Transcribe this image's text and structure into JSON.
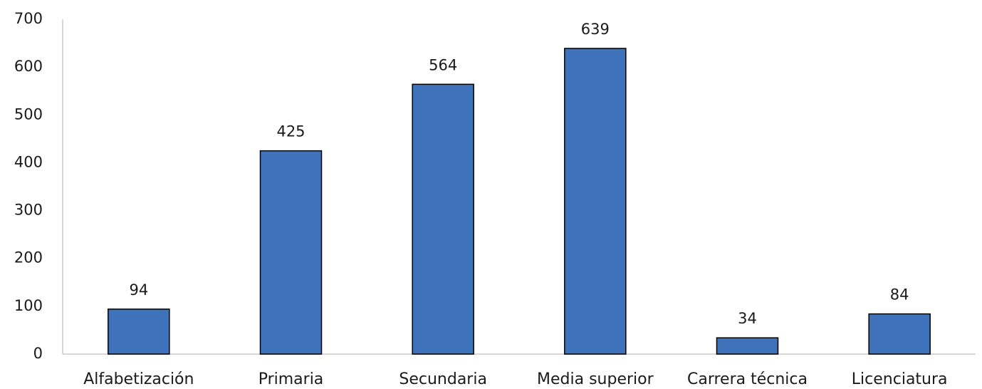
{
  "chart_data": {
    "type": "bar",
    "categories": [
      "Alfabetización",
      "Primaria",
      "Secundaria",
      "Media superior",
      "Carrera técnica",
      "Licenciatura"
    ],
    "values": [
      94,
      425,
      564,
      639,
      34,
      84
    ],
    "color": "#3e72ba",
    "ylim": [
      0,
      700
    ],
    "yticks": [
      0,
      100,
      200,
      300,
      400,
      500,
      600,
      700
    ],
    "grid": false
  }
}
